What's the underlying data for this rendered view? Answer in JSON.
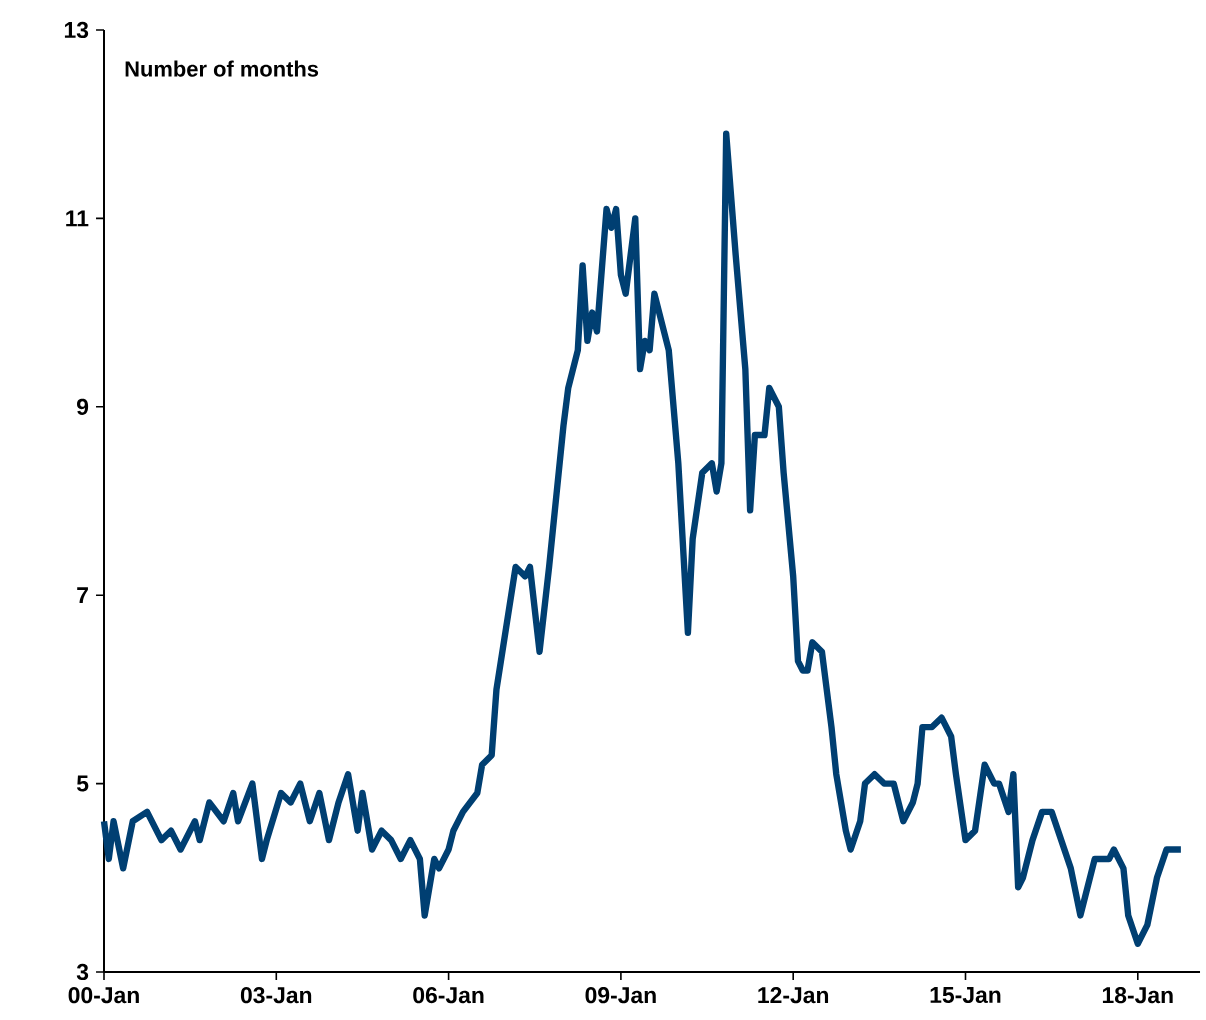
{
  "chart_data": {
    "type": "line",
    "ylabel": "Number of months",
    "x": [
      "2000-01",
      "2000-02",
      "2000-03",
      "2000-05",
      "2000-07",
      "2000-10",
      "2001-01",
      "2001-03",
      "2001-05",
      "2001-08",
      "2001-09",
      "2001-11",
      "2002-02",
      "2002-04",
      "2002-05",
      "2002-08",
      "2002-10",
      "2002-11",
      "2003-02",
      "2003-04",
      "2003-06",
      "2003-08",
      "2003-10",
      "2003-12",
      "2004-02",
      "2004-04",
      "2004-06",
      "2004-07",
      "2004-09",
      "2004-11",
      "2005-01",
      "2005-03",
      "2005-05",
      "2005-07",
      "2005-08",
      "2005-10",
      "2005-11",
      "2006-01",
      "2006-02",
      "2006-04",
      "2006-07",
      "2006-08",
      "2006-10",
      "2006-11",
      "2007-03",
      "2007-05",
      "2007-06",
      "2007-08",
      "2007-10",
      "2008-01",
      "2008-02",
      "2008-04",
      "2008-05",
      "2008-06",
      "2008-07",
      "2008-08",
      "2008-10",
      "2008-11",
      "2008-12",
      "2009-01",
      "2009-02",
      "2009-04",
      "2009-05",
      "2009-06",
      "2009-07",
      "2009-08",
      "2009-10",
      "2009-11",
      "2010-01",
      "2010-03",
      "2010-04",
      "2010-06",
      "2010-08",
      "2010-09",
      "2010-10",
      "2010-11",
      "2011-01",
      "2011-03",
      "2011-04",
      "2011-05",
      "2011-07",
      "2011-08",
      "2011-10",
      "2011-11",
      "2012-01",
      "2012-02",
      "2012-03",
      "2012-04",
      "2012-05",
      "2012-07",
      "2012-09",
      "2012-10",
      "2012-12",
      "2013-01",
      "2013-03",
      "2013-04",
      "2013-06",
      "2013-08",
      "2013-10",
      "2013-12",
      "2014-02",
      "2014-03",
      "2014-04",
      "2014-06",
      "2014-08",
      "2014-10",
      "2014-11",
      "2015-01",
      "2015-03",
      "2015-05",
      "2015-07",
      "2015-08",
      "2015-10",
      "2015-11",
      "2015-12",
      "2016-01",
      "2016-03",
      "2016-05",
      "2016-07",
      "2016-09",
      "2016-11",
      "2017-01",
      "2017-02",
      "2017-04",
      "2017-07",
      "2017-08",
      "2017-10",
      "2017-11",
      "2018-01",
      "2018-03",
      "2018-05",
      "2018-07",
      "2018-10"
    ],
    "series": [
      {
        "color": "#003f72",
        "values": [
          4.6,
          4.2,
          4.6,
          4.1,
          4.6,
          4.7,
          4.4,
          4.5,
          4.3,
          4.6,
          4.4,
          4.8,
          4.6,
          4.9,
          4.6,
          5.0,
          4.2,
          4.4,
          4.9,
          4.8,
          5.0,
          4.6,
          4.9,
          4.4,
          4.8,
          5.1,
          4.5,
          4.9,
          4.3,
          4.5,
          4.4,
          4.2,
          4.4,
          4.2,
          3.6,
          4.2,
          4.1,
          4.3,
          4.5,
          4.7,
          4.9,
          5.2,
          5.3,
          6.0,
          7.3,
          7.2,
          7.3,
          6.4,
          7.3,
          8.8,
          9.2,
          9.6,
          10.5,
          9.7,
          10.0,
          9.8,
          11.1,
          10.9,
          11.1,
          10.4,
          10.2,
          11.0,
          9.4,
          9.7,
          9.6,
          10.2,
          9.8,
          9.6,
          8.4,
          6.6,
          7.6,
          8.3,
          8.4,
          8.1,
          8.4,
          11.9,
          10.6,
          9.4,
          7.9,
          8.7,
          8.7,
          9.2,
          9.0,
          8.3,
          7.2,
          6.3,
          6.2,
          6.2,
          6.5,
          6.4,
          5.6,
          5.1,
          4.5,
          4.3,
          4.6,
          5.0,
          5.1,
          5.0,
          5.0,
          4.6,
          4.8,
          5.0,
          5.6,
          5.6,
          5.7,
          5.5,
          5.1,
          4.4,
          4.5,
          5.2,
          5.0,
          5.0,
          4.7,
          5.1,
          3.9,
          4.0,
          4.4,
          4.7,
          4.7,
          4.4,
          4.1,
          3.6,
          3.8,
          4.2,
          4.2,
          4.3,
          4.1,
          3.6,
          3.3,
          3.5,
          4.0,
          4.3,
          4.3
        ]
      }
    ],
    "xlim": [
      "2000-01",
      "2019-02"
    ],
    "xticks": [
      {
        "value": "2000-01",
        "label": "00-Jan"
      },
      {
        "value": "2003-01",
        "label": "03-Jan"
      },
      {
        "value": "2006-01",
        "label": "06-Jan"
      },
      {
        "value": "2009-01",
        "label": "09-Jan"
      },
      {
        "value": "2012-01",
        "label": "12-Jan"
      },
      {
        "value": "2015-01",
        "label": "15-Jan"
      },
      {
        "value": "2018-01",
        "label": "18-Jan"
      }
    ],
    "ylim": [
      3,
      13
    ],
    "yticks": [
      3,
      5,
      7,
      9,
      11,
      13
    ],
    "grid": false,
    "legend": false,
    "marker": "none",
    "line_style": "solid"
  }
}
